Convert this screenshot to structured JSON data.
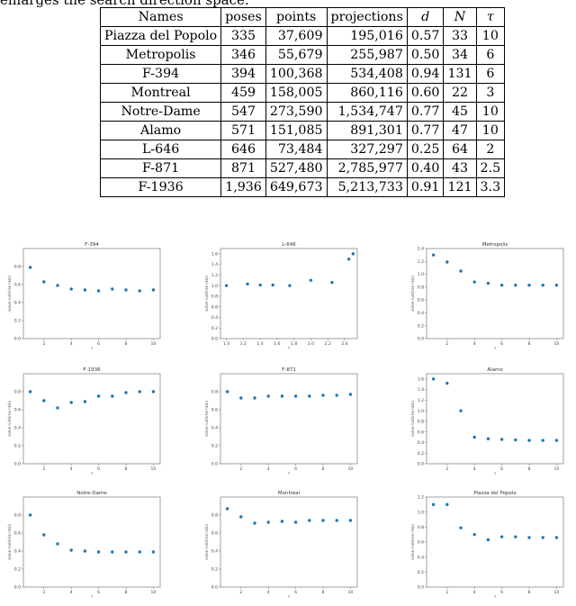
{
  "intro_text": "enlarges the search direction space.",
  "table": {
    "headers": [
      "Names",
      "poses",
      "points",
      "projections",
      "d",
      "N",
      "τ"
    ],
    "rows": [
      [
        "Piazza del Popolo",
        "335",
        "37,609",
        "195,016",
        "0.57",
        "33",
        "10"
      ],
      [
        "Metropolis",
        "346",
        "55,679",
        "255,987",
        "0.50",
        "34",
        "6"
      ],
      [
        "F-394",
        "394",
        "100,368",
        "534,408",
        "0.94",
        "131",
        "6"
      ],
      [
        "Montreal",
        "459",
        "158,005",
        "860,116",
        "0.60",
        "22",
        "3"
      ],
      [
        "Notre-Dame",
        "547",
        "273,590",
        "1,534,747",
        "0.77",
        "45",
        "10"
      ],
      [
        "Alamo",
        "571",
        "151,085",
        "891,301",
        "0.77",
        "47",
        "10"
      ],
      [
        "L-646",
        "646",
        "73,484",
        "327,297",
        "0.25",
        "64",
        "2"
      ],
      [
        "F-871",
        "871",
        "527,480",
        "2,785,977",
        "0.40",
        "43",
        "2.5"
      ],
      [
        "F-1936",
        "1,936",
        "649,673",
        "5,213,733",
        "0.91",
        "121",
        "3.3"
      ]
    ]
  },
  "chart_data": [
    {
      "type": "scatter",
      "title": "F-394",
      "xlabel": "τ",
      "ylabel": "solve runtime ratio",
      "color": "#1f77b4",
      "xlim": [
        0.5,
        10.5
      ],
      "ylim": [
        0,
        1.0
      ],
      "xticks": [
        2,
        4,
        6,
        8,
        10
      ],
      "yticks": [
        0,
        0.2,
        0.4,
        0.6,
        0.8
      ],
      "x": [
        1,
        2,
        3,
        4,
        5,
        6,
        7,
        8,
        9,
        10
      ],
      "y": [
        0.79,
        0.63,
        0.59,
        0.55,
        0.54,
        0.53,
        0.55,
        0.54,
        0.53,
        0.54
      ]
    },
    {
      "type": "scatter",
      "title": "L-646",
      "xlabel": "τ",
      "ylabel": "solve runtime ratio",
      "color": "#1f77b4",
      "xlim": [
        0.93,
        2.55
      ],
      "ylim": [
        0,
        1.7
      ],
      "xticks": [
        1.0,
        1.2,
        1.4,
        1.6,
        1.8,
        2.0,
        2.2,
        2.4
      ],
      "yticks": [
        0,
        0.2,
        0.4,
        0.6,
        0.8,
        1.0,
        1.2,
        1.4,
        1.6
      ],
      "x": [
        1.0,
        1.25,
        1.4,
        1.55,
        1.75,
        2.0,
        2.25,
        2.45,
        2.5
      ],
      "y": [
        1.0,
        1.03,
        1.01,
        1.01,
        1.0,
        1.1,
        1.06,
        1.5,
        1.6
      ]
    },
    {
      "type": "scatter",
      "title": "Metropolis",
      "xlabel": "τ",
      "ylabel": "solve runtime ratio",
      "color": "#1f77b4",
      "xlim": [
        0.5,
        10.5
      ],
      "ylim": [
        0,
        1.4
      ],
      "xticks": [
        2,
        4,
        6,
        8,
        10
      ],
      "yticks": [
        0,
        0.2,
        0.4,
        0.6,
        0.8,
        1.0,
        1.2,
        1.4
      ],
      "x": [
        1,
        2,
        3,
        4,
        5,
        6,
        7,
        8,
        9,
        10
      ],
      "y": [
        1.3,
        1.19,
        1.05,
        0.88,
        0.86,
        0.83,
        0.83,
        0.83,
        0.83,
        0.83
      ]
    },
    {
      "type": "scatter",
      "title": "F-1936",
      "xlabel": "τ",
      "ylabel": "solve runtime ratio",
      "color": "#1f77b4",
      "xlim": [
        0.5,
        10.5
      ],
      "ylim": [
        0,
        1.0
      ],
      "xticks": [
        2,
        4,
        6,
        8,
        10
      ],
      "yticks": [
        0,
        0.2,
        0.4,
        0.6,
        0.8
      ],
      "x": [
        1,
        2,
        3,
        4,
        5,
        6,
        7,
        8,
        9,
        10
      ],
      "y": [
        0.8,
        0.7,
        0.62,
        0.68,
        0.69,
        0.75,
        0.75,
        0.79,
        0.8,
        0.8
      ]
    },
    {
      "type": "scatter",
      "title": "F-871",
      "xlabel": "τ",
      "ylabel": "solve runtime ratio",
      "color": "#1f77b4",
      "xlim": [
        0.5,
        10.5
      ],
      "ylim": [
        0,
        1.0
      ],
      "xticks": [
        2,
        4,
        6,
        8,
        10
      ],
      "yticks": [
        0,
        0.2,
        0.4,
        0.6,
        0.8
      ],
      "x": [
        1,
        2,
        3,
        4,
        5,
        6,
        7,
        8,
        9,
        10
      ],
      "y": [
        0.8,
        0.73,
        0.73,
        0.75,
        0.75,
        0.75,
        0.75,
        0.76,
        0.76,
        0.77
      ]
    },
    {
      "type": "scatter",
      "title": "Alamo",
      "xlabel": "τ",
      "ylabel": "solve runtime ratio",
      "color": "#1f77b4",
      "xlim": [
        0.5,
        10.5
      ],
      "ylim": [
        0,
        1.7
      ],
      "xticks": [
        2,
        4,
        6,
        8,
        10
      ],
      "yticks": [
        0,
        0.2,
        0.4,
        0.6,
        0.8,
        1.0,
        1.2,
        1.4,
        1.6
      ],
      "x": [
        1,
        2,
        3,
        4,
        5,
        6,
        7,
        8,
        9,
        10
      ],
      "y": [
        1.6,
        1.52,
        1.0,
        0.5,
        0.47,
        0.46,
        0.45,
        0.44,
        0.44,
        0.44
      ]
    },
    {
      "type": "scatter",
      "title": "Notre-Dame",
      "xlabel": "τ",
      "ylabel": "solve runtime ratio",
      "color": "#1f77b4",
      "xlim": [
        0.5,
        10.5
      ],
      "ylim": [
        0,
        1.0
      ],
      "xticks": [
        2,
        4,
        6,
        8,
        10
      ],
      "yticks": [
        0,
        0.2,
        0.4,
        0.6,
        0.8
      ],
      "x": [
        1,
        2,
        3,
        4,
        5,
        6,
        7,
        8,
        9,
        10
      ],
      "y": [
        0.8,
        0.58,
        0.48,
        0.41,
        0.4,
        0.39,
        0.39,
        0.39,
        0.39,
        0.39
      ]
    },
    {
      "type": "scatter",
      "title": "Montreal",
      "xlabel": "τ",
      "ylabel": "solve runtime ratio",
      "color": "#1f77b4",
      "xlim": [
        0.5,
        10.5
      ],
      "ylim": [
        0,
        1.0
      ],
      "xticks": [
        2,
        4,
        6,
        8,
        10
      ],
      "yticks": [
        0,
        0.2,
        0.4,
        0.6,
        0.8
      ],
      "x": [
        1,
        2,
        3,
        4,
        5,
        6,
        7,
        8,
        9,
        10
      ],
      "y": [
        0.87,
        0.78,
        0.71,
        0.72,
        0.73,
        0.72,
        0.74,
        0.74,
        0.74,
        0.74
      ]
    },
    {
      "type": "scatter",
      "title": "Piazza del Popolo",
      "xlabel": "τ",
      "ylabel": "solve runtime ratio",
      "color": "#1f77b4",
      "xlim": [
        0.5,
        10.5
      ],
      "ylim": [
        0,
        1.2
      ],
      "xticks": [
        2,
        4,
        6,
        8,
        10
      ],
      "yticks": [
        0,
        0.2,
        0.4,
        0.6,
        0.8,
        1.0,
        1.2
      ],
      "x": [
        1,
        2,
        3,
        4,
        5,
        6,
        7,
        8,
        9,
        10
      ],
      "y": [
        1.1,
        1.1,
        0.79,
        0.7,
        0.63,
        0.67,
        0.67,
        0.66,
        0.66,
        0.66
      ]
    }
  ]
}
